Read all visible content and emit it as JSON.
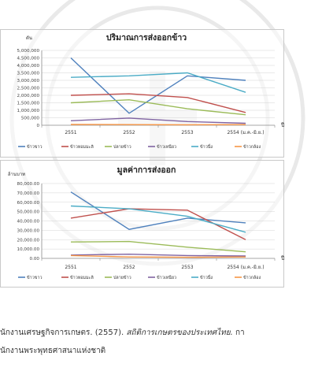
{
  "chart_data": [
    {
      "type": "line",
      "title": "ปริมาณการส่งออกข้าว",
      "ylabel": "ตัน",
      "xlabel": "ปี",
      "categories": [
        "2551",
        "2552",
        "2553",
        "2554 (ม.ค.-มิ.ย.)"
      ],
      "yticks": [
        "0",
        "500,000",
        "1,000,000",
        "1,500,000",
        "2,000,000",
        "2,500,000",
        "3,000,000",
        "3,500,000",
        "4,000,000",
        "4,500,000",
        "5,000,000"
      ],
      "ylim": [
        0,
        5000000
      ],
      "series": [
        {
          "name": "ข้าวขาว",
          "color": "#4f81bd",
          "values": [
            4500000,
            800000,
            3300000,
            3000000
          ]
        },
        {
          "name": "ข้าวหอมมะลิ",
          "color": "#c0504d",
          "values": [
            2000000,
            2100000,
            1850000,
            850000
          ]
        },
        {
          "name": "ปลายข้าว",
          "color": "#9bbb59",
          "values": [
            1500000,
            1700000,
            1100000,
            700000
          ]
        },
        {
          "name": "ข้าวเหนียว",
          "color": "#8064a2",
          "values": [
            300000,
            480000,
            250000,
            130000
          ]
        },
        {
          "name": "ข้าวนึ่ง",
          "color": "#4bacc6",
          "values": [
            3200000,
            3300000,
            3500000,
            2200000
          ]
        },
        {
          "name": "ข้าวกล้อง",
          "color": "#f79646",
          "values": [
            50000,
            40000,
            30000,
            40000
          ]
        }
      ],
      "grid": true,
      "legend": "bottom"
    },
    {
      "type": "line",
      "title": "มูลค่าการส่งออก",
      "ylabel": "ล้านบาท",
      "xlabel": "ปี",
      "categories": [
        "2551",
        "2552",
        "2553",
        "2554 (ม.ค.-มิ.ย.)"
      ],
      "yticks": [
        "0.00",
        "10,000.00",
        "20,000.00",
        "30,000.00",
        "40,000.00",
        "50,000.00",
        "60,000.00",
        "70,000.00",
        "80,000.00"
      ],
      "ylim": [
        0,
        80000
      ],
      "series": [
        {
          "name": "ข้าวขาว",
          "color": "#4f81bd",
          "values": [
            71000,
            31000,
            43000,
            38000
          ]
        },
        {
          "name": "ข้าวหอมมะลิ",
          "color": "#c0504d",
          "values": [
            43000,
            53000,
            51500,
            20000
          ]
        },
        {
          "name": "ปลายข้าว",
          "color": "#9bbb59",
          "values": [
            17500,
            18000,
            12000,
            7000
          ]
        },
        {
          "name": "ข้าวเหนียว",
          "color": "#8064a2",
          "values": [
            3500,
            4500,
            3000,
            2500
          ]
        },
        {
          "name": "ข้าวนึ่ง",
          "color": "#4bacc6",
          "values": [
            56000,
            53000,
            45000,
            28000
          ]
        },
        {
          "name": "ข้าวกล้อง",
          "color": "#f79646",
          "values": [
            3000,
            1500,
            1200,
            1500
          ]
        }
      ],
      "grid": true,
      "legend": "bottom"
    }
  ],
  "caption": {
    "line1_prefix": "นักงานเศรษฐกิจการเกษตร. (2557). ",
    "line1_title": "สถิติการเกษตรของประเทศไทย.",
    "line1_suffix": " กา",
    "line2": "นักงานพระพุทธศาสนาแห่งชาติ"
  }
}
